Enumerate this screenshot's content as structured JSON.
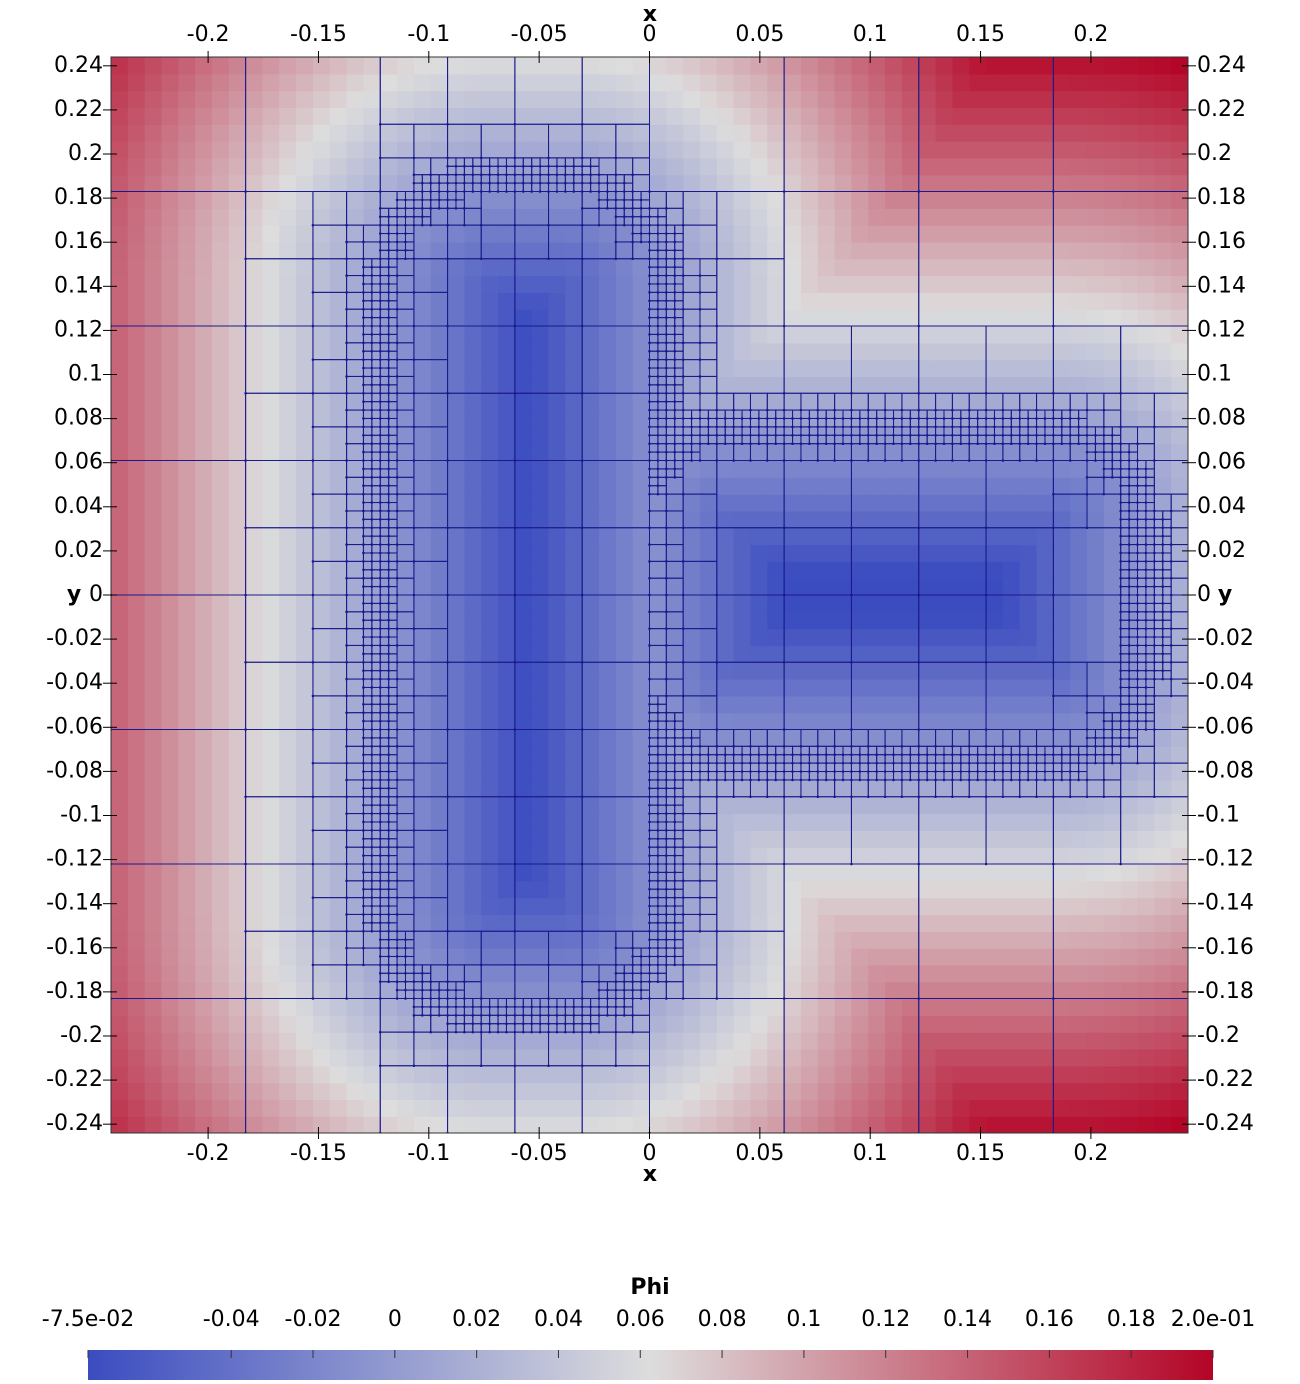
{
  "chart_data": {
    "type": "heatmap",
    "xlabel": "x",
    "ylabel": "y",
    "xlim": [
      -0.244,
      0.244
    ],
    "ylim": [
      -0.244,
      0.244
    ],
    "xticks": [
      -0.2,
      -0.15,
      -0.1,
      -0.05,
      0,
      0.05,
      0.1,
      0.15,
      0.2
    ],
    "yticks": [
      -0.24,
      -0.22,
      -0.2,
      -0.18,
      -0.16,
      -0.14,
      -0.12,
      -0.1,
      -0.08,
      -0.06,
      -0.04,
      -0.02,
      0,
      0.02,
      0.04,
      0.06,
      0.08,
      0.1,
      0.12,
      0.14,
      0.16,
      0.18,
      0.2,
      0.22,
      0.24
    ],
    "colorbar": {
      "title": "Phi",
      "lim": [
        -0.075,
        0.2
      ],
      "ticks": [
        {
          "value": -0.075,
          "label": "-7.5e-02"
        },
        -0.04,
        -0.02,
        0,
        0.02,
        0.04,
        0.06,
        0.08,
        0.1,
        0.12,
        0.14,
        0.16,
        0.18,
        {
          "value": 0.2,
          "label": "2.0e-01"
        }
      ],
      "colors": [
        "#3b4cc0",
        "#dddddd",
        "#b40426"
      ]
    },
    "mesh_color": "#1a1a8c"
  }
}
